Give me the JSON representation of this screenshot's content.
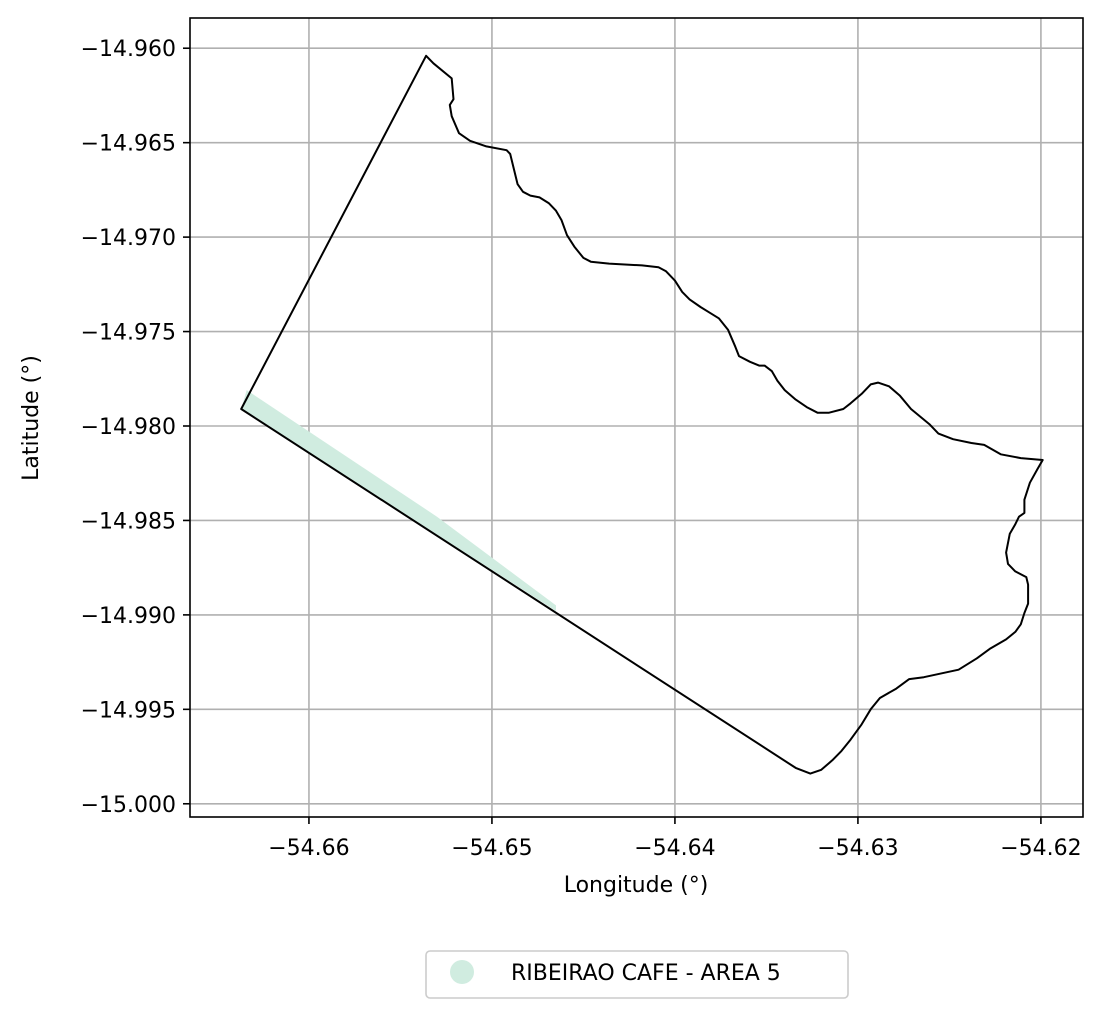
{
  "chart_data": {
    "type": "map",
    "xlabel": "Longitude (°)",
    "ylabel": "Latitude (°)",
    "xlim": [
      -54.6665,
      -54.6177
    ],
    "ylim": [
      -15.0007,
      -14.9584
    ],
    "grid": true,
    "x_ticks": [
      {
        "value": -54.66,
        "label": "−54.66"
      },
      {
        "value": -54.65,
        "label": "−54.65"
      },
      {
        "value": -54.64,
        "label": "−54.64"
      },
      {
        "value": -54.63,
        "label": "−54.63"
      },
      {
        "value": -54.62,
        "label": "−54.62"
      }
    ],
    "y_ticks": [
      {
        "value": -14.96,
        "label": "−14.960"
      },
      {
        "value": -14.965,
        "label": "−14.965"
      },
      {
        "value": -14.97,
        "label": "−14.970"
      },
      {
        "value": -14.975,
        "label": "−14.975"
      },
      {
        "value": -14.98,
        "label": "−14.980"
      },
      {
        "value": -14.985,
        "label": "−14.985"
      },
      {
        "value": -14.99,
        "label": "−14.990"
      },
      {
        "value": -14.995,
        "label": "−14.995"
      },
      {
        "value": -15.0,
        "label": "−15.000"
      }
    ],
    "boundary": {
      "stroke": "#000000",
      "coordinates": [
        [
          -54.6536,
          -14.9604
        ],
        [
          -54.6532,
          -14.9608
        ],
        [
          -54.6522,
          -14.9616
        ],
        [
          -54.6521,
          -14.9627
        ],
        [
          -54.6523,
          -14.963
        ],
        [
          -54.6522,
          -14.9636
        ],
        [
          -54.6518,
          -14.9645
        ],
        [
          -54.6512,
          -14.9649
        ],
        [
          -54.6503,
          -14.9652
        ],
        [
          -54.6492,
          -14.9654
        ],
        [
          -54.649,
          -14.9656
        ],
        [
          -54.6488,
          -14.9664
        ],
        [
          -54.6486,
          -14.9672
        ],
        [
          -54.6483,
          -14.9676
        ],
        [
          -54.6479,
          -14.9678
        ],
        [
          -54.6474,
          -14.9679
        ],
        [
          -54.6469,
          -14.9682
        ],
        [
          -54.6465,
          -14.9686
        ],
        [
          -54.6462,
          -14.9691
        ],
        [
          -54.6459,
          -14.9699
        ],
        [
          -54.6455,
          -14.9705
        ],
        [
          -54.645,
          -14.9711
        ],
        [
          -54.6446,
          -14.9713
        ],
        [
          -54.6436,
          -14.9714
        ],
        [
          -54.6418,
          -14.9715
        ],
        [
          -54.6409,
          -14.9716
        ],
        [
          -54.6405,
          -14.9718
        ],
        [
          -54.64,
          -14.9723
        ],
        [
          -54.6396,
          -14.9729
        ],
        [
          -54.6392,
          -14.9733
        ],
        [
          -54.6386,
          -14.9737
        ],
        [
          -54.6381,
          -14.974
        ],
        [
          -54.6376,
          -14.9743
        ],
        [
          -54.6371,
          -14.9749
        ],
        [
          -54.6367,
          -14.9758
        ],
        [
          -54.6365,
          -14.9763
        ],
        [
          -54.6359,
          -14.9766
        ],
        [
          -54.6354,
          -14.9768
        ],
        [
          -54.6351,
          -14.9768
        ],
        [
          -54.6347,
          -14.9771
        ],
        [
          -54.6344,
          -14.9776
        ],
        [
          -54.634,
          -14.9781
        ],
        [
          -54.6334,
          -14.9786
        ],
        [
          -54.6328,
          -14.979
        ],
        [
          -54.6322,
          -14.9793
        ],
        [
          -54.6316,
          -14.9793
        ],
        [
          -54.6308,
          -14.9791
        ],
        [
          -54.6304,
          -14.9788
        ],
        [
          -54.6298,
          -14.9783
        ],
        [
          -54.6293,
          -14.9778
        ],
        [
          -54.6289,
          -14.9777
        ],
        [
          -54.6283,
          -14.9779
        ],
        [
          -54.6277,
          -14.9784
        ],
        [
          -54.6271,
          -14.9791
        ],
        [
          -54.6261,
          -14.9799
        ],
        [
          -54.6256,
          -14.9804
        ],
        [
          -54.6248,
          -14.9807
        ],
        [
          -54.6238,
          -14.9809
        ],
        [
          -54.6231,
          -14.981
        ],
        [
          -54.6222,
          -14.9815
        ],
        [
          -54.6211,
          -14.9817
        ],
        [
          -54.6199,
          -14.9818
        ],
        [
          -54.6202,
          -14.9823
        ],
        [
          -54.6206,
          -14.983
        ],
        [
          -54.6209,
          -14.9839
        ],
        [
          -54.6209,
          -14.9846
        ],
        [
          -54.6212,
          -14.9848
        ],
        [
          -54.6214,
          -14.9852
        ],
        [
          -54.6217,
          -14.9857
        ],
        [
          -54.6219,
          -14.9867
        ],
        [
          -54.6218,
          -14.9873
        ],
        [
          -54.6214,
          -14.9877
        ],
        [
          -54.6208,
          -14.988
        ],
        [
          -54.6207,
          -14.9884
        ],
        [
          -54.6207,
          -14.9894
        ],
        [
          -54.6209,
          -14.9899
        ],
        [
          -54.6211,
          -14.9905
        ],
        [
          -54.6214,
          -14.9909
        ],
        [
          -54.6219,
          -14.9913
        ],
        [
          -54.6228,
          -14.9918
        ],
        [
          -54.6235,
          -14.9923
        ],
        [
          -54.6245,
          -14.9929
        ],
        [
          -54.6264,
          -14.9933
        ],
        [
          -54.6272,
          -14.9934
        ],
        [
          -54.6279,
          -14.9939
        ],
        [
          -54.6288,
          -14.9944
        ],
        [
          -54.6293,
          -14.995
        ],
        [
          -54.6298,
          -14.9958
        ],
        [
          -54.6304,
          -14.9966
        ],
        [
          -54.6309,
          -14.9972
        ],
        [
          -54.6314,
          -14.9977
        ],
        [
          -54.632,
          -14.9982
        ],
        [
          -54.6326,
          -14.9984
        ],
        [
          -54.6334,
          -14.9981
        ],
        [
          -54.6637,
          -14.9791
        ],
        [
          -54.6536,
          -14.9604
        ]
      ]
    },
    "series": [
      {
        "name": "RIBEIRAO CAFE - AREA 5",
        "color": "#d0ece0",
        "coordinates": [
          [
            -54.6637,
            -14.9791
          ],
          [
            -54.6634,
            -14.9781
          ],
          [
            -54.653,
            -14.9848
          ],
          [
            -54.6465,
            -14.9895
          ],
          [
            -54.6465,
            -14.9898
          ],
          [
            -54.6637,
            -14.9791
          ]
        ]
      }
    ],
    "legend": {
      "position": "bottom-center",
      "marker": "circle"
    }
  }
}
